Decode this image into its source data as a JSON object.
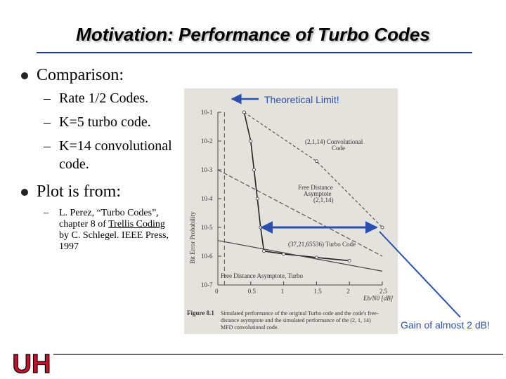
{
  "slide": {
    "title": "Motivation: Performance of Turbo Codes",
    "bullets": [
      {
        "text": "Comparison:",
        "subitems": [
          "Rate 1/2 Codes.",
          "K=5 turbo code.",
          "K=14 convolutional",
          "code."
        ]
      },
      {
        "text": "Plot is from:",
        "citation": [
          "L. Perez, “Turbo Codes”,",
          "chapter 8 of",
          "Trellis Coding",
          "by C. Schlegel. IEEE Press,",
          "1997"
        ]
      }
    ],
    "dash": "–"
  },
  "figure": {
    "ylabel": "Bit Error Probability",
    "yticks": [
      "10-1",
      "10-2",
      "10-3",
      "10-4",
      "10-5",
      "10-6",
      "10-7"
    ],
    "xticks": [
      "0",
      "0.5",
      "1",
      "1.5",
      "2",
      "2.5"
    ],
    "xlabel": "Eb/N0 [dB]",
    "curve_labels": {
      "conv": [
        "(2,1,14) Convolutional",
        "Code"
      ],
      "fda": [
        "Free Distance",
        "Asymptote",
        "(2,1,14)"
      ],
      "turbo": "(37,21,65536) Turbo Code",
      "fda_turbo": "Free Distance Asymptote, Turbo"
    },
    "caption_label": "Figure 8.1",
    "caption": [
      "Simulated performance of the original Turbo code and the code's free-",
      "distance asymptote and the simulated performance of the (2, 1, 14)",
      "MFD convolutional code."
    ]
  },
  "chart_data": {
    "type": "line",
    "xlabel": "Eb/N0 [dB]",
    "ylabel": "Bit Error Probability",
    "xlim": [
      0,
      2.5
    ],
    "ylim_log10": [
      -7,
      -1
    ],
    "y_scale": "log",
    "series": [
      {
        "name": "(37,21,65536) Turbo Code",
        "x": [
          0.4,
          0.5,
          0.55,
          0.6,
          0.65,
          0.7,
          1.0,
          1.5,
          2.0
        ],
        "y": [
          0.1,
          0.01,
          0.001,
          0.0001,
          1e-05,
          1.5e-06,
          1.2e-06,
          9e-07,
          7e-07
        ]
      },
      {
        "name": "(2,1,14) Convolutional Code",
        "x": [
          0.4,
          1.5,
          2.5
        ],
        "y": [
          0.1,
          0.002,
          1e-05
        ]
      },
      {
        "name": "Free Distance Asymptote (2,1,14)",
        "x": [
          0.0,
          2.5
        ],
        "y": [
          0.001,
          1e-06
        ]
      },
      {
        "name": "Free Distance Asymptote, Turbo",
        "x": [
          0.0,
          2.5
        ],
        "y": [
          3.5e-06,
          3e-07
        ]
      }
    ]
  },
  "annotations": {
    "limit": "Theoretical Limit!",
    "gain": "Gain of almost 2 dB!",
    "color": "#2a4fb0"
  },
  "logo": {
    "text": "UH",
    "color": "#c8102e"
  }
}
